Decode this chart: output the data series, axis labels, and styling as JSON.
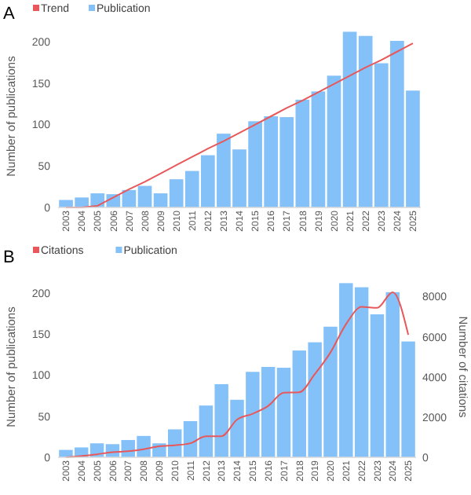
{
  "chart_data": [
    {
      "type": "bar",
      "title": "A",
      "ylabel": "Number of publications",
      "categories": [
        "2003",
        "2004",
        "2005",
        "2006",
        "2007",
        "2008",
        "2009",
        "2010",
        "2011",
        "2012",
        "2013",
        "2014",
        "2015",
        "2016",
        "2017",
        "2018",
        "2019",
        "2020",
        "2021",
        "2022",
        "2023",
        "2024",
        "2025"
      ],
      "series": [
        {
          "name": "Trend",
          "type": "line",
          "color": "#e8585a",
          "values": [
            0,
            0,
            2,
            12,
            22,
            31,
            41,
            51,
            61,
            71,
            80,
            90,
            100,
            110,
            120,
            129,
            139,
            149,
            159,
            169,
            178,
            188,
            198
          ]
        },
        {
          "name": "Publication",
          "color": "#85c1f9",
          "values": [
            9,
            12,
            17,
            16,
            21,
            26,
            17,
            34,
            44,
            63,
            89,
            70,
            104,
            110,
            109,
            130,
            140,
            159,
            212,
            207,
            174,
            201,
            141
          ]
        }
      ],
      "ylim": [
        0,
        220
      ],
      "yticks": [
        0,
        50,
        100,
        150,
        200
      ],
      "legend": "top left",
      "grid": false
    },
    {
      "type": "bar",
      "title": "B",
      "ylabel": "Number of publications",
      "y2label": "Number of citations",
      "categories": [
        "2003",
        "2004",
        "2005",
        "2006",
        "2007",
        "2008",
        "2009",
        "2010",
        "2011",
        "2012",
        "2013",
        "2014",
        "2015",
        "2016",
        "2017",
        "2018",
        "2019",
        "2020",
        "2021",
        "2022",
        "2023",
        "2024",
        "2025"
      ],
      "series": [
        {
          "name": "Citations",
          "type": "line",
          "axis": "y2",
          "color": "#e8585a",
          "values": [
            0,
            60,
            150,
            250,
            300,
            400,
            550,
            600,
            700,
            1050,
            1050,
            1880,
            2170,
            2560,
            3220,
            3240,
            4150,
            5220,
            6630,
            7490,
            7440,
            8220,
            6100
          ]
        },
        {
          "name": "Publication",
          "color": "#85c1f9",
          "values": [
            9,
            12,
            17,
            16,
            21,
            26,
            17,
            34,
            44,
            63,
            89,
            70,
            104,
            110,
            109,
            130,
            140,
            159,
            212,
            207,
            174,
            201,
            141
          ]
        }
      ],
      "ylim": [
        0,
        220
      ],
      "yticks": [
        0,
        50,
        100,
        150,
        200
      ],
      "y2lim": [
        0,
        9000
      ],
      "y2ticks": [
        0,
        2000,
        4000,
        6000,
        8000
      ],
      "legend": "top left",
      "grid": false
    }
  ]
}
